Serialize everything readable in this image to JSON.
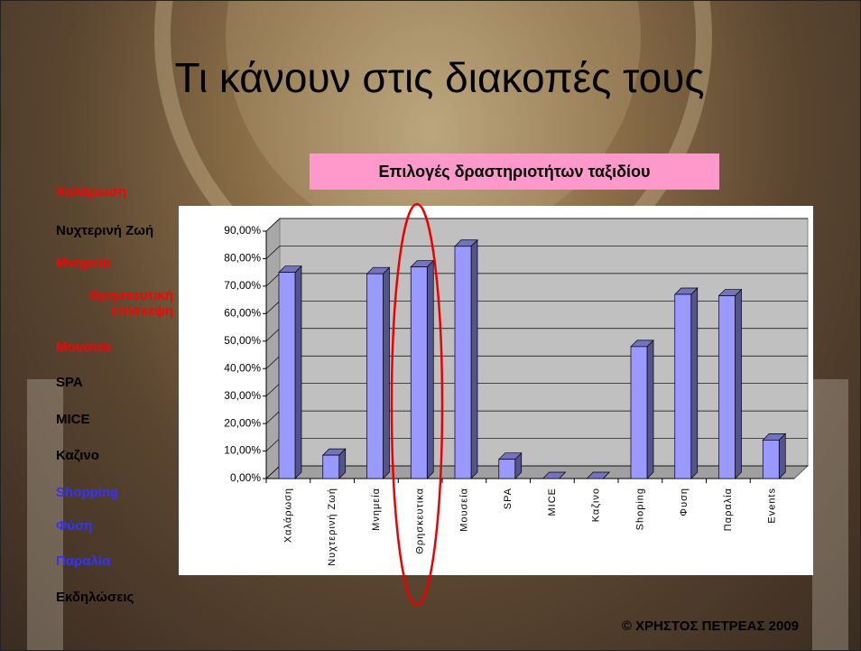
{
  "title": "Τι κάνουν στις διακοπές τους",
  "sidebar": [
    {
      "text": "Χαλάρωση",
      "color": "#ff0000"
    },
    {
      "text": "Νυχτερινή Ζωή",
      "color": "#000000"
    },
    {
      "text": "Μνημεία",
      "color": "#ff0000"
    },
    {
      "text": "Θρησκευτική επίσκεψη",
      "color": "#ff0000"
    },
    {
      "text": "Μουσεία",
      "color": "#ff0000"
    },
    {
      "text": "SPA",
      "color": "#000000"
    },
    {
      "text": "MICE",
      "color": "#000000"
    },
    {
      "text": "Καζινο",
      "color": "#000000"
    },
    {
      "text": "Shopping",
      "color": "#3333ff"
    },
    {
      "text": "Φύση",
      "color": "#3333ff"
    },
    {
      "text": "Παραλία",
      "color": "#3333ff"
    },
    {
      "text": "Εκδηλώσεις",
      "color": "#000000"
    }
  ],
  "footer": "© ΧΡΗΣΤΟΣ ΠΕΤΡΕΑΣ 2009",
  "chart_data": {
    "type": "bar",
    "title": "Επιλογές δραστηριοτήτων ταξιδίου",
    "categories": [
      "Χαλάρωση",
      "Νυχτερινή Ζωή",
      "Μνημεία",
      "Θρησκευτικα",
      "Μουσεία",
      "SPA",
      "MICE",
      "Καζινο",
      "Shoping",
      "Φυση",
      "Παραλία",
      "Events"
    ],
    "values": [
      75,
      8.5,
      74.5,
      77,
      84.5,
      7,
      0,
      0,
      48,
      67,
      66.5,
      14
    ],
    "color": "#9999ff",
    "ylim": [
      0,
      90
    ],
    "yticks": [
      {
        "value": 0,
        "label": "0,00%"
      },
      {
        "value": 10,
        "label": "10,00%"
      },
      {
        "value": 20,
        "label": "20,00%"
      },
      {
        "value": 30,
        "label": "30,00%"
      },
      {
        "value": 40,
        "label": "40,00%"
      },
      {
        "value": 50,
        "label": "50,00%"
      },
      {
        "value": 60,
        "label": "60,00%"
      },
      {
        "value": 70,
        "label": "70,00%"
      },
      {
        "value": 80,
        "label": "80,00%"
      },
      {
        "value": 90,
        "label": "90,00%"
      }
    ],
    "grid": true
  }
}
